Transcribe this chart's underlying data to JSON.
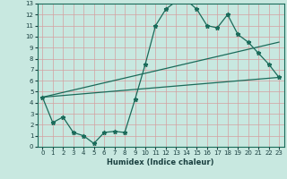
{
  "xlabel": "Humidex (Indice chaleur)",
  "bg_color": "#c8e8e0",
  "line_color": "#1a6b5a",
  "grid_color_major": "#d4a0a0",
  "grid_color_minor": "#e0c8c8",
  "xlim": [
    -0.5,
    23.5
  ],
  "ylim": [
    0,
    13
  ],
  "xticks": [
    0,
    1,
    2,
    3,
    4,
    5,
    6,
    7,
    8,
    9,
    10,
    11,
    12,
    13,
    14,
    15,
    16,
    17,
    18,
    19,
    20,
    21,
    22,
    23
  ],
  "yticks": [
    0,
    1,
    2,
    3,
    4,
    5,
    6,
    7,
    8,
    9,
    10,
    11,
    12,
    13
  ],
  "line1_x": [
    0,
    1,
    2,
    3,
    4,
    5,
    6,
    7,
    8,
    9,
    10,
    11,
    12,
    13,
    14,
    15,
    16,
    17,
    18,
    19,
    20,
    21,
    22,
    23
  ],
  "line1_y": [
    4.5,
    2.2,
    2.7,
    1.3,
    1.0,
    0.3,
    1.3,
    1.4,
    1.3,
    4.3,
    7.5,
    11.0,
    12.5,
    13.2,
    13.3,
    12.5,
    11.0,
    10.8,
    12.0,
    10.2,
    9.5,
    8.5,
    7.5,
    6.3
  ],
  "line2_x": [
    0,
    23
  ],
  "line2_y": [
    4.5,
    9.5
  ],
  "line3_x": [
    0,
    23
  ],
  "line3_y": [
    4.5,
    6.3
  ],
  "xlabel_fontsize": 6,
  "tick_fontsize": 5,
  "tick_color": "#1a4040",
  "xlabel_color": "#1a4040"
}
